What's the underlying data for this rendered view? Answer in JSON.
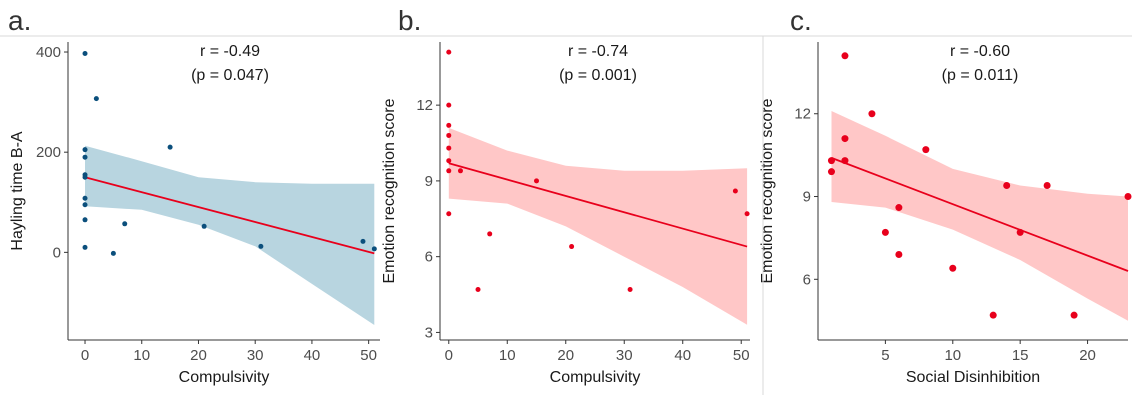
{
  "chart_data": [
    {
      "type": "scatter",
      "panel_label": "a.",
      "xlabel": "Compulsivity",
      "ylabel": "Hayling time B-A",
      "annotation_r": "r = -0.49",
      "annotation_p": "(p = 0.047)",
      "xlim": [
        -3,
        52
      ],
      "ylim": [
        -175,
        420
      ],
      "xticks": [
        0,
        10,
        20,
        30,
        40,
        50
      ],
      "yticks": [
        0,
        200,
        400
      ],
      "grid": false,
      "point_color": "#0b4f7c",
      "band_color": "#b8d5e0",
      "line_color": "#e8001c",
      "points": [
        {
          "x": 0,
          "y": 397
        },
        {
          "x": 0,
          "y": 205
        },
        {
          "x": 0,
          "y": 190
        },
        {
          "x": 0,
          "y": 155
        },
        {
          "x": 0,
          "y": 150
        },
        {
          "x": 0,
          "y": 108
        },
        {
          "x": 0,
          "y": 95
        },
        {
          "x": 0,
          "y": 65
        },
        {
          "x": 0,
          "y": 10
        },
        {
          "x": 2,
          "y": 307
        },
        {
          "x": 5,
          "y": -2
        },
        {
          "x": 7,
          "y": 57
        },
        {
          "x": 15,
          "y": 210
        },
        {
          "x": 21,
          "y": 52
        },
        {
          "x": 31,
          "y": 12
        },
        {
          "x": 49,
          "y": 22
        },
        {
          "x": 51,
          "y": 7
        }
      ],
      "fit": {
        "x0": 0,
        "y0": 150,
        "x1": 51,
        "y1": -2
      },
      "ci": {
        "x": [
          0,
          10,
          20,
          30,
          40,
          51
        ],
        "lower": [
          92,
          85,
          55,
          12,
          -63,
          -145
        ],
        "upper": [
          213,
          182,
          150,
          140,
          137,
          137
        ]
      }
    },
    {
      "type": "scatter",
      "panel_label": "b.",
      "xlabel": "Compulsivity",
      "ylabel": "Emotion recognition score",
      "annotation_r": "r = -0.74",
      "annotation_p": "(p = 0.001)",
      "xlim": [
        -1.5,
        51.5
      ],
      "ylim": [
        2.7,
        14.5
      ],
      "xticks": [
        0,
        10,
        20,
        30,
        40,
        50
      ],
      "yticks": [
        3,
        6,
        9,
        12
      ],
      "grid": false,
      "point_color": "#e8001c",
      "band_color": "#ffc7c7",
      "line_color": "#e8001c",
      "points": [
        {
          "x": 0,
          "y": 14.1
        },
        {
          "x": 0,
          "y": 12.0
        },
        {
          "x": 0,
          "y": 11.2
        },
        {
          "x": 0,
          "y": 10.8
        },
        {
          "x": 0,
          "y": 10.3
        },
        {
          "x": 0,
          "y": 9.8
        },
        {
          "x": 0,
          "y": 9.4
        },
        {
          "x": 0,
          "y": 7.7
        },
        {
          "x": 2,
          "y": 9.4
        },
        {
          "x": 5,
          "y": 4.7
        },
        {
          "x": 7,
          "y": 6.9
        },
        {
          "x": 15,
          "y": 9.0
        },
        {
          "x": 21,
          "y": 6.4
        },
        {
          "x": 31,
          "y": 4.7
        },
        {
          "x": 49,
          "y": 8.6
        },
        {
          "x": 51,
          "y": 7.7
        }
      ],
      "fit": {
        "x0": 0,
        "y0": 9.7,
        "x1": 51,
        "y1": 6.4
      },
      "ci": {
        "x": [
          0,
          10,
          20,
          30,
          40,
          51
        ],
        "lower": [
          8.3,
          8.1,
          7.2,
          6.0,
          4.8,
          3.3
        ],
        "upper": [
          11.1,
          10.2,
          9.6,
          9.4,
          9.4,
          9.5
        ]
      }
    },
    {
      "type": "scatter",
      "panel_label": "c.",
      "xlabel": "Social Disinhibition",
      "ylabel": "Emotion recognition score",
      "annotation_r": "r = -0.60",
      "annotation_p": "(p = 0.011)",
      "xlim": [
        0,
        23
      ],
      "ylim": [
        3.8,
        14.6
      ],
      "xticks": [
        5,
        10,
        15,
        20
      ],
      "yticks": [
        6,
        9,
        12
      ],
      "grid": false,
      "point_color": "#e8001c",
      "band_color": "#ffc7c7",
      "line_color": "#e8001c",
      "points": [
        {
          "x": 1,
          "y": 10.3
        },
        {
          "x": 1,
          "y": 9.9
        },
        {
          "x": 2,
          "y": 14.1
        },
        {
          "x": 2,
          "y": 11.1
        },
        {
          "x": 2,
          "y": 10.3
        },
        {
          "x": 4,
          "y": 12.0
        },
        {
          "x": 5,
          "y": 7.7
        },
        {
          "x": 6,
          "y": 8.6
        },
        {
          "x": 6,
          "y": 6.9
        },
        {
          "x": 8,
          "y": 10.7
        },
        {
          "x": 10,
          "y": 6.4
        },
        {
          "x": 13,
          "y": 4.7
        },
        {
          "x": 14,
          "y": 9.4
        },
        {
          "x": 15,
          "y": 7.7
        },
        {
          "x": 17,
          "y": 9.4
        },
        {
          "x": 19,
          "y": 4.7
        },
        {
          "x": 23,
          "y": 9.0
        }
      ],
      "fit": {
        "x0": 1,
        "y0": 10.4,
        "x1": 23,
        "y1": 6.3
      },
      "ci": {
        "x": [
          1,
          5,
          10,
          15,
          20,
          23
        ],
        "lower": [
          8.8,
          8.6,
          7.8,
          6.7,
          5.3,
          4.5
        ],
        "upper": [
          12.1,
          11.2,
          10.0,
          9.4,
          9.1,
          9.0
        ]
      }
    }
  ]
}
